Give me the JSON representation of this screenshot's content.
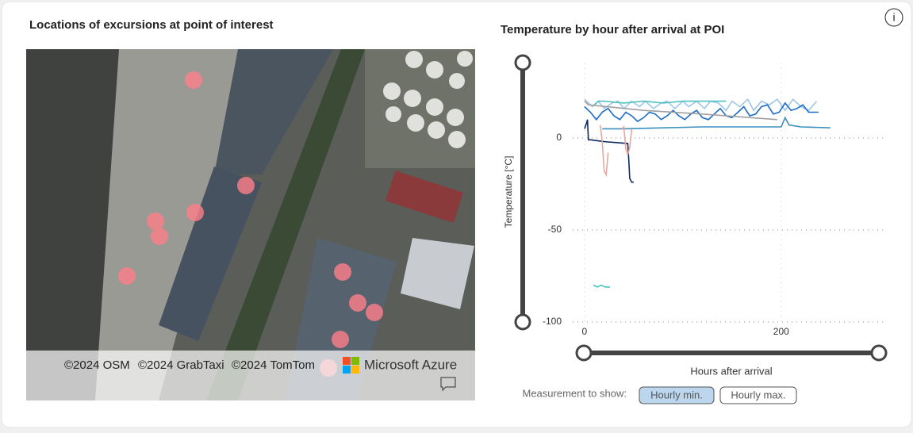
{
  "map": {
    "title": "Locations of excursions at point of interest",
    "attribution": [
      "©2024 OSM",
      "©2024 GrabTaxi",
      "©2024 TomTom"
    ],
    "brand": "Microsoft Azure"
  },
  "info_icon": "i",
  "chart_data": {
    "type": "line",
    "title": "Temperature by hour after arrival at POI",
    "y_label": "Temperature [°C]",
    "x_label": "Hours after arrival",
    "xlim": [
      -12,
      305
    ],
    "ylim": [
      -100,
      40.5
    ],
    "xticks": [
      0,
      200
    ],
    "yticks": [
      -100,
      -50,
      0
    ],
    "grid": true,
    "series": [
      {
        "color": "#9ec6e6",
        "x": [
          0,
          8,
          14,
          20,
          28,
          34,
          40,
          48,
          56,
          62,
          70,
          78,
          84,
          92,
          100,
          106,
          114,
          122,
          128,
          136,
          144,
          150,
          158,
          166,
          172,
          180,
          188,
          196,
          204,
          212,
          220,
          228,
          236
        ],
        "values": [
          21,
          17,
          20,
          16,
          19,
          20,
          16,
          20,
          17,
          20,
          16,
          19,
          20,
          16,
          20,
          17,
          20,
          16,
          20,
          19,
          15,
          20,
          17,
          21,
          15,
          20,
          18,
          21,
          15,
          21,
          17,
          15,
          20
        ]
      },
      {
        "color": "#1a6cc4",
        "x": [
          0,
          6,
          12,
          18,
          24,
          30,
          36,
          42,
          48,
          54,
          60,
          66,
          72,
          78,
          84,
          90,
          96,
          102,
          108,
          114,
          120,
          126,
          132,
          138,
          144,
          150,
          156,
          162,
          168,
          174,
          180,
          186,
          192,
          198,
          204,
          210,
          216,
          222,
          228,
          238
        ],
        "values": [
          17,
          14,
          10,
          14,
          16,
          12,
          10,
          14,
          12,
          9,
          11,
          14,
          13,
          10,
          12,
          15,
          12,
          10,
          13,
          15,
          11,
          10,
          13,
          16,
          12,
          11,
          14,
          17,
          12,
          13,
          17,
          18,
          13,
          14,
          19,
          15,
          16,
          18,
          14,
          14
        ]
      },
      {
        "color": "#4ec2c2",
        "x": [
          10,
          14,
          20,
          40,
          60,
          80,
          100,
          120,
          144
        ],
        "values": [
          18,
          20,
          20,
          19,
          20,
          19,
          20,
          20,
          20
        ]
      },
      {
        "color": "#3a8fc0",
        "x": [
          18,
          40,
          80,
          120,
          160,
          200,
          204,
          208,
          220,
          250
        ],
        "values": [
          5,
          5,
          5.5,
          6,
          6,
          6,
          11,
          7,
          6,
          5.5
        ]
      },
      {
        "color": "#a0a0a0",
        "x": [
          0,
          4,
          60,
          120,
          196
        ],
        "values": [
          20,
          18,
          15,
          13,
          10
        ]
      },
      {
        "color": "#0d2a5e",
        "x": [
          0,
          2,
          3,
          4,
          6,
          20,
          44,
          45,
          46,
          48,
          50
        ],
        "values": [
          5,
          8,
          10,
          -1,
          -1,
          -2,
          -3,
          -12,
          -22,
          -24,
          -24
        ]
      },
      {
        "color": "#e4a8a0",
        "x": [
          16,
          18,
          20,
          22,
          24,
          null,
          38,
          40,
          42,
          44,
          46,
          48
        ],
        "values": [
          7,
          -2,
          -18,
          -20,
          -8,
          null,
          5,
          6,
          -6,
          -9,
          -5,
          5
        ]
      },
      {
        "color": "#4ec2c2",
        "x": [
          9,
          13,
          17,
          21,
          26
        ],
        "values": [
          -80,
          -81,
          -80,
          -81,
          -81
        ]
      }
    ]
  },
  "controls": {
    "label": "Measurement to show:",
    "options": [
      "Hourly min.",
      "Hourly max."
    ],
    "selected": 0
  }
}
